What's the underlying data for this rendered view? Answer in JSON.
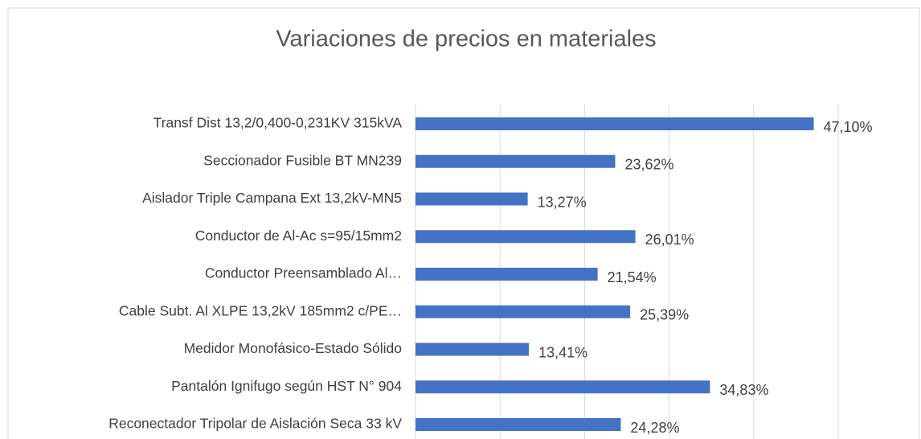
{
  "chart_data": {
    "type": "bar",
    "orientation": "horizontal",
    "title": "Variaciones de precios en materiales",
    "categories": [
      "Transf Dist 13,2/0,400-0,231KV 315kVA",
      "Seccionador Fusible BT MN239",
      "Aislador Triple Campana Ext 13,2kV-MN5",
      "Conductor de Al-Ac s=95/15mm2",
      "Conductor Preensamblado Al…",
      "Cable Subt. Al XLPE 13,2kV 185mm2 c/PE…",
      "Medidor Monofásico-Estado Sólido",
      "Pantalón Ignifugo según HST N° 904",
      "Reconectador Tripolar de Aislación Seca 33 kV"
    ],
    "values": [
      47.1,
      23.62,
      13.27,
      26.01,
      21.54,
      25.39,
      13.41,
      34.83,
      24.28
    ],
    "value_labels": [
      "47,10%",
      "23,62%",
      "13,27%",
      "26,01%",
      "21,54%",
      "25,39%",
      "13,41%",
      "34,83%",
      "24,28%"
    ],
    "color": "#4472c4",
    "xlim": [
      0,
      50
    ],
    "xticks": [
      0,
      10,
      20,
      30,
      40,
      50
    ],
    "grid": true
  }
}
